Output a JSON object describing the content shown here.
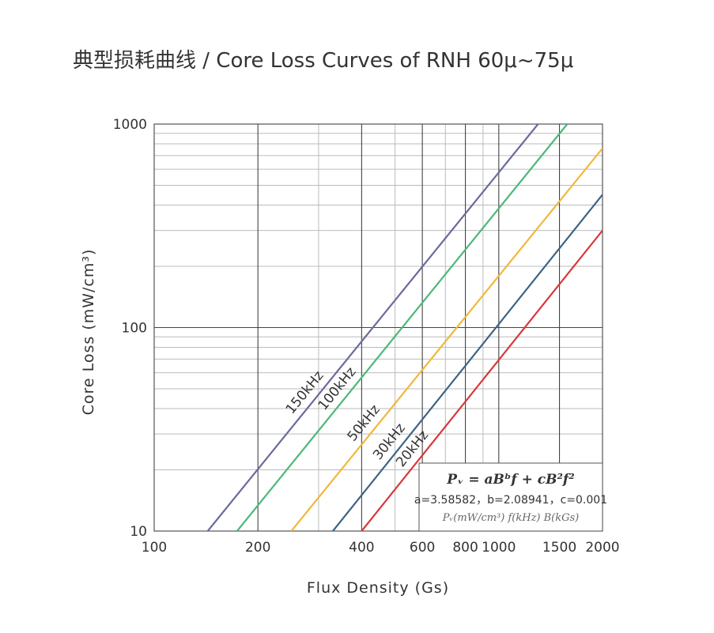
{
  "chart_data": {
    "type": "line",
    "title": "典型损耗曲线 / Core Loss Curves of RNH 60μ~75μ",
    "xlabel": "Flux Density (Gs)",
    "ylabel": "Core Loss (mW/cm³)",
    "xscale": "log",
    "yscale": "log",
    "xlim": [
      100,
      2000
    ],
    "ylim": [
      10,
      1000
    ],
    "grid": true,
    "x_ticks": [
      {
        "value": 100,
        "label": "100"
      },
      {
        "value": 200,
        "label": "200"
      },
      {
        "value": 400,
        "label": "400"
      },
      {
        "value": 600,
        "label": "600"
      },
      {
        "value": 800,
        "label": "800"
      },
      {
        "value": 1000,
        "label": "1000"
      },
      {
        "value": 1500,
        "label": "1500"
      },
      {
        "value": 2000,
        "label": "2000"
      }
    ],
    "y_ticks": [
      {
        "value": 10,
        "label": "10"
      },
      {
        "value": 100,
        "label": "100"
      },
      {
        "value": 1000,
        "label": "1000"
      }
    ],
    "series": [
      {
        "name": "150kHz",
        "color": "#6a6a9e",
        "x": [
          143,
          1300
        ],
        "y": [
          10,
          1000
        ]
      },
      {
        "name": "100kHz",
        "color": "#4cb87a",
        "x": [
          174,
          1580
        ],
        "y": [
          10,
          1000
        ]
      },
      {
        "name": "50kHz",
        "color": "#f0b83c",
        "x": [
          250,
          2000
        ],
        "y": [
          10,
          760
        ]
      },
      {
        "name": "30kHz",
        "color": "#3d6485",
        "x": [
          330,
          2000
        ],
        "y": [
          10,
          450
        ]
      },
      {
        "name": "20kHz",
        "color": "#d8373b",
        "x": [
          400,
          2000
        ],
        "y": [
          10,
          300
        ]
      }
    ],
    "formula": {
      "line1": "Pᵥ = aBᵇf + cB²f²",
      "line2": "a=3.58582，b=2.08941，c=0.001",
      "line3": "Pᵥ(mW/cm³) f(kHz) B(kGs)"
    }
  }
}
